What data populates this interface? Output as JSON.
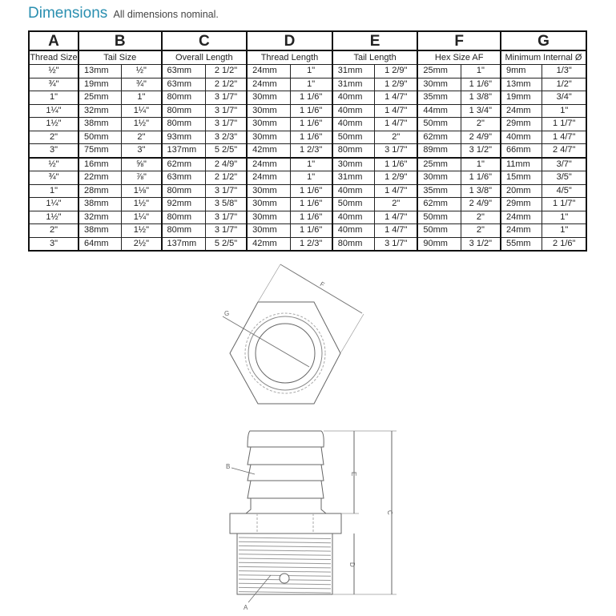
{
  "title": "Dimensions",
  "subtitle": "All dimensions nominal.",
  "columns": [
    {
      "letter": "A",
      "label": "Thread Size"
    },
    {
      "letter": "B",
      "label": "Tail Size"
    },
    {
      "letter": "C",
      "label": "Overall Length"
    },
    {
      "letter": "D",
      "label": "Thread Length"
    },
    {
      "letter": "E",
      "label": "Tail Length"
    },
    {
      "letter": "F",
      "label": "Hex Size AF"
    },
    {
      "letter": "G",
      "label": "Minimum Internal Ø"
    }
  ],
  "rows": [
    [
      "½\"",
      "13mm",
      "½\"",
      "63mm",
      "2 1/2\"",
      "24mm",
      "1\"",
      "31mm",
      "1 2/9\"",
      "25mm",
      "1\"",
      "9mm",
      "1/3\""
    ],
    [
      "¾\"",
      "19mm",
      "¾\"",
      "63mm",
      "2 1/2\"",
      "24mm",
      "1\"",
      "31mm",
      "1 2/9\"",
      "30mm",
      "1 1/6\"",
      "13mm",
      "1/2\""
    ],
    [
      "1\"",
      "25mm",
      "1\"",
      "80mm",
      "3 1/7\"",
      "30mm",
      "1 1/6\"",
      "40mm",
      "1 4/7\"",
      "35mm",
      "1 3/8\"",
      "19mm",
      "3/4\""
    ],
    [
      "1¼\"",
      "32mm",
      "1¼\"",
      "80mm",
      "3 1/7\"",
      "30mm",
      "1 1/6\"",
      "40mm",
      "1 4/7\"",
      "44mm",
      "1 3/4\"",
      "24mm",
      "1\""
    ],
    [
      "1½\"",
      "38mm",
      "1½\"",
      "80mm",
      "3 1/7\"",
      "30mm",
      "1 1/6\"",
      "40mm",
      "1 4/7\"",
      "50mm",
      "2\"",
      "29mm",
      "1 1/7\""
    ],
    [
      "2\"",
      "50mm",
      "2\"",
      "93mm",
      "3 2/3\"",
      "30mm",
      "1 1/6\"",
      "50mm",
      "2\"",
      "62mm",
      "2 4/9\"",
      "40mm",
      "1 4/7\""
    ],
    [
      "3\"",
      "75mm",
      "3\"",
      "137mm",
      "5 2/5\"",
      "42mm",
      "1 2/3\"",
      "80mm",
      "3 1/7\"",
      "89mm",
      "3 1/2\"",
      "66mm",
      "2 4/7\""
    ],
    [
      "½\"",
      "16mm",
      "⅝\"",
      "62mm",
      "2 4/9\"",
      "24mm",
      "1\"",
      "30mm",
      "1 1/6\"",
      "25mm",
      "1\"",
      "11mm",
      "3/7\""
    ],
    [
      "¾\"",
      "22mm",
      "⅞\"",
      "63mm",
      "2 1/2\"",
      "24mm",
      "1\"",
      "31mm",
      "1 2/9\"",
      "30mm",
      "1 1/6\"",
      "15mm",
      "3/5\""
    ],
    [
      "1\"",
      "28mm",
      "1⅛\"",
      "80mm",
      "3 1/7\"",
      "30mm",
      "1 1/6\"",
      "40mm",
      "1 4/7\"",
      "35mm",
      "1 3/8\"",
      "20mm",
      "4/5\""
    ],
    [
      "1¼\"",
      "38mm",
      "1½\"",
      "92mm",
      "3 5/8\"",
      "30mm",
      "1 1/6\"",
      "50mm",
      "2\"",
      "62mm",
      "2 4/9\"",
      "29mm",
      "1 1/7\""
    ],
    [
      "1½\"",
      "32mm",
      "1¼\"",
      "80mm",
      "3 1/7\"",
      "30mm",
      "1 1/6\"",
      "40mm",
      "1 4/7\"",
      "50mm",
      "2\"",
      "24mm",
      "1\""
    ],
    [
      "2\"",
      "38mm",
      "1½\"",
      "80mm",
      "3 1/7\"",
      "30mm",
      "1 1/6\"",
      "40mm",
      "1 4/7\"",
      "50mm",
      "2\"",
      "24mm",
      "1\""
    ],
    [
      "3\"",
      "64mm",
      "2½\"",
      "137mm",
      "5 2/5\"",
      "42mm",
      "1 2/3\"",
      "80mm",
      "3 1/7\"",
      "90mm",
      "3 1/2\"",
      "55mm",
      "2 1/6\""
    ]
  ],
  "drawing": {
    "labels": {
      "a": "A",
      "b": "B",
      "c": "C",
      "d": "D",
      "e": "E",
      "f": "F",
      "g": "G"
    }
  }
}
